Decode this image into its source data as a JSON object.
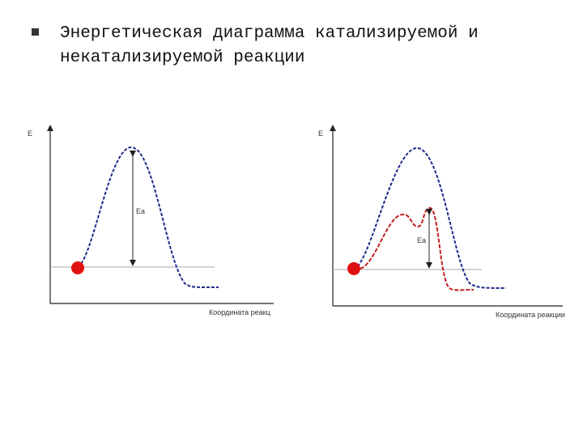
{
  "header": {
    "title": "Энергетическая диаграмма катализируемой и некатализируемой реакции"
  },
  "diagrams": [
    {
      "y_label": "E",
      "energy_label": "Eа",
      "x_label": "Координата реакц"
    },
    {
      "y_label": "E",
      "energy_label": "Eа",
      "x_label": "Координата реакции"
    }
  ]
}
